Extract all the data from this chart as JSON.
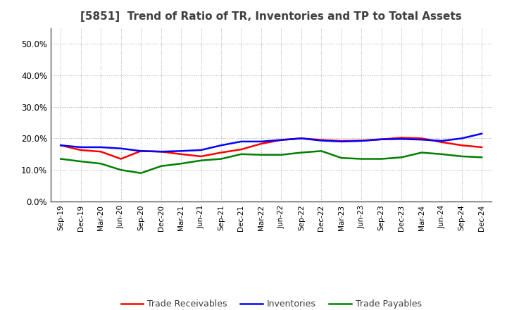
{
  "title": "[5851]  Trend of Ratio of TR, Inventories and TP to Total Assets",
  "x_labels": [
    "Sep-19",
    "Dec-19",
    "Mar-20",
    "Jun-20",
    "Sep-20",
    "Dec-20",
    "Mar-21",
    "Jun-21",
    "Sep-21",
    "Dec-21",
    "Mar-22",
    "Jun-22",
    "Sep-22",
    "Dec-22",
    "Mar-23",
    "Jun-23",
    "Sep-23",
    "Dec-23",
    "Mar-24",
    "Jun-24",
    "Sep-24",
    "Dec-24"
  ],
  "trade_receivables": [
    0.178,
    0.163,
    0.158,
    0.135,
    0.16,
    0.158,
    0.15,
    0.143,
    0.155,
    0.165,
    0.183,
    0.195,
    0.2,
    0.195,
    0.192,
    0.193,
    0.197,
    0.202,
    0.2,
    0.188,
    0.178,
    0.172
  ],
  "inventories": [
    0.178,
    0.172,
    0.172,
    0.168,
    0.16,
    0.158,
    0.16,
    0.163,
    0.178,
    0.19,
    0.19,
    0.195,
    0.2,
    0.193,
    0.19,
    0.192,
    0.197,
    0.198,
    0.196,
    0.192,
    0.2,
    0.215
  ],
  "trade_payables": [
    0.135,
    0.127,
    0.12,
    0.1,
    0.09,
    0.112,
    0.12,
    0.13,
    0.135,
    0.15,
    0.148,
    0.148,
    0.155,
    0.16,
    0.138,
    0.135,
    0.135,
    0.14,
    0.155,
    0.15,
    0.143,
    0.14
  ],
  "tr_color": "#ff0000",
  "inv_color": "#0000ff",
  "tp_color": "#008000",
  "ylim": [
    0.0,
    0.55
  ],
  "yticks": [
    0.0,
    0.1,
    0.2,
    0.3,
    0.4,
    0.5
  ],
  "bg_color": "#ffffff",
  "plot_bg_color": "#ffffff",
  "grid_color": "#aaaaaa",
  "title_color": "#404040",
  "legend_labels": [
    "Trade Receivables",
    "Inventories",
    "Trade Payables"
  ]
}
